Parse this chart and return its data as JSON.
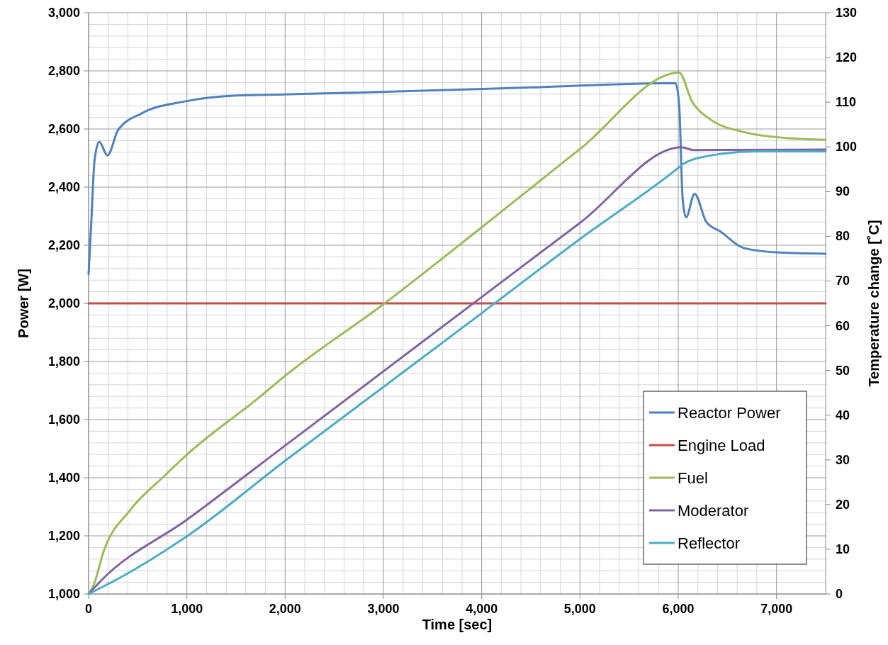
{
  "chart_data": {
    "type": "line",
    "xlabel": "Time [sec]",
    "ylabel": "Power [W]",
    "y2label": "Temperature change [˚C]",
    "xlim": [
      0,
      7500
    ],
    "xticks": [
      0,
      {
        "value": 1000,
        "label": "1,000"
      },
      {
        "value": 2000,
        "label": "2,000"
      },
      {
        "value": 3000,
        "label": "3,000"
      },
      {
        "value": 4000,
        "label": "4,000"
      },
      {
        "value": 5000,
        "label": "5,000"
      },
      {
        "value": 6000,
        "label": "6,000"
      },
      {
        "value": 7000,
        "label": "7,000"
      }
    ],
    "ylim": [
      1000,
      3000
    ],
    "yticks": [
      {
        "value": 1000,
        "label": "1,000"
      },
      {
        "value": 1200,
        "label": "1,200"
      },
      {
        "value": 1400,
        "label": "1,400"
      },
      {
        "value": 1600,
        "label": "1,600"
      },
      {
        "value": 1800,
        "label": "1,800"
      },
      {
        "value": 2000,
        "label": "2,000"
      },
      {
        "value": 2200,
        "label": "2,200"
      },
      {
        "value": 2400,
        "label": "2,400"
      },
      {
        "value": 2600,
        "label": "2,600"
      },
      {
        "value": 2800,
        "label": "2,800"
      },
      {
        "value": 3000,
        "label": "3,000"
      }
    ],
    "y2lim": [
      0,
      130
    ],
    "y2ticks": [
      0,
      10,
      20,
      30,
      40,
      50,
      60,
      70,
      80,
      90,
      100,
      110,
      120,
      130
    ],
    "grid": true,
    "legend": "bottom right",
    "marker": "none",
    "line_style": "solid",
    "series": [
      {
        "name": "Reactor Power",
        "color": "#4f81bd",
        "x": [
          0,
          29,
          60,
          108,
          192,
          301,
          541,
          996,
          1502,
          1983,
          2704,
          4507,
          5971,
          6009,
          6045,
          6080,
          6166,
          6286,
          6430,
          6670,
          7031,
          7500
        ],
        "values": [
          2100,
          2290,
          2490,
          2556,
          2509,
          2597,
          2654,
          2696,
          2715,
          2719,
          2725,
          2743,
          2758,
          2686,
          2361,
          2296,
          2377,
          2280,
          2247,
          2190,
          2175,
          2171
        ]
      },
      {
        "name": "Engine Load",
        "color": "#c0504d",
        "x": [
          0,
          7500
        ],
        "values": [
          2000,
          2000
        ]
      },
      {
        "name": "Fuel",
        "color": "#9bbb59",
        "axis": "y2",
        "x": [
          0,
          48,
          156,
          420,
          781,
          997,
          1743,
          2000,
          3000,
          4000,
          5000,
          6009,
          6142,
          6310,
          6670,
          7151,
          7500
        ],
        "values": [
          0,
          1.8,
          9.7,
          18.7,
          26.6,
          31.1,
          44.1,
          48.8,
          64.8,
          82,
          99.5,
          116.6,
          110.1,
          106.4,
          103.3,
          101.9,
          101.6
        ]
      },
      {
        "name": "Moderator",
        "color": "#8064a2",
        "axis": "y2",
        "x": [
          0,
          132,
          1000,
          2000,
          3000,
          4000,
          5000,
          6033,
          6153,
          7500
        ],
        "values": [
          0,
          3.1,
          16.6,
          33.2,
          49.8,
          66.4,
          83,
          99.9,
          99.3,
          99.4
        ]
      },
      {
        "name": "Reflector",
        "color": "#4bacc6",
        "axis": "y2",
        "x": [
          0,
          301,
          1000,
          2000,
          3000,
          4000,
          4988,
          6000,
          6045,
          6310,
          6791,
          7500
        ],
        "values": [
          0,
          3.4,
          12.9,
          29.8,
          46.3,
          62.8,
          79.2,
          95.3,
          96.1,
          98.0,
          99.0,
          99.0
        ]
      }
    ]
  }
}
